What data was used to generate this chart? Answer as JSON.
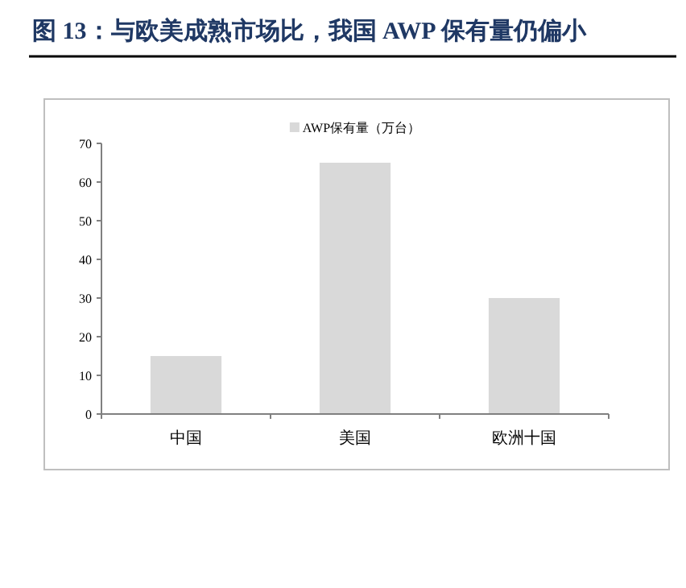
{
  "chart_data": {
    "type": "bar",
    "title": "图 13：与欧美成熟市场比，我国 AWP 保有量仍偏小",
    "categories": [
      "中国",
      "美国",
      "欧洲十国"
    ],
    "series": [
      {
        "name": "AWP保有量（万台）",
        "color": "#d9d9d9",
        "values": [
          15,
          65,
          30
        ]
      }
    ],
    "ylim": [
      0,
      70
    ],
    "yticks": [
      0,
      10,
      20,
      30,
      40,
      50,
      60,
      70
    ],
    "grid": false,
    "legend": "top"
  }
}
